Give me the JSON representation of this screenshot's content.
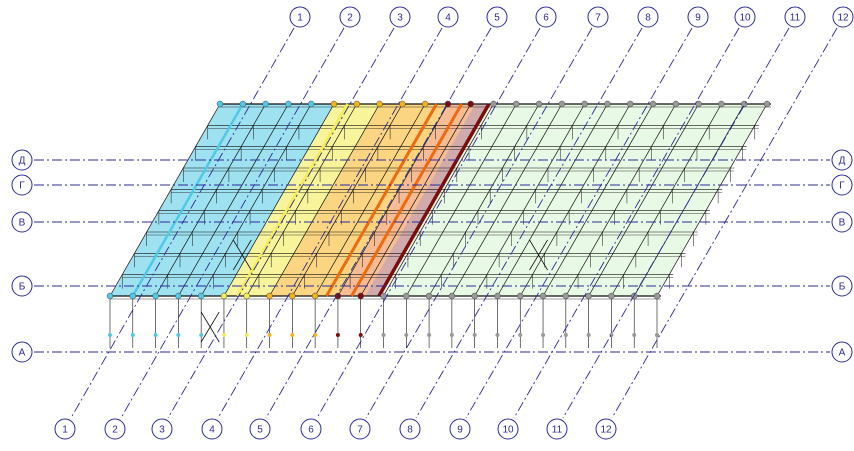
{
  "grid_axes": {
    "numbered_top": [
      "1",
      "2",
      "3",
      "4",
      "5",
      "6",
      "7",
      "8",
      "9",
      "10",
      "11",
      "12"
    ],
    "numbered_bottom": [
      "1",
      "2",
      "3",
      "4",
      "5",
      "6",
      "7",
      "8",
      "9",
      "10",
      "11",
      "12"
    ],
    "lettered_left": [
      "Д",
      "Г",
      "В",
      "Б",
      "А"
    ],
    "lettered_right": [
      "Д",
      "Г",
      "В",
      "Б",
      "А"
    ]
  },
  "colors": {
    "axis_line": "#2b2b9a",
    "axis_bubble": "#2b2b9a",
    "structure": "#111111",
    "node_marker": "#999999",
    "zone_cyan": "#4fc9e6",
    "zone_yellow": "#f4ec5a",
    "zone_gold": "#f7b21a",
    "zone_orange": "#ee6a10",
    "zone_darkred": "#7a0d0d",
    "zone_palegreen": "#cdf2c6"
  }
}
